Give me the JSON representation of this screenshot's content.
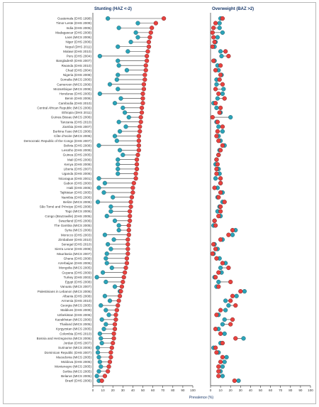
{
  "colors": {
    "stunting_dot": "#e8423f",
    "baseline_dot": "#2aa3b8",
    "stem": "#333333"
  },
  "chart_data": [
    {
      "type": "dumbbell",
      "title": "Stunting (HAZ <-2)",
      "xlabel": "Prevalence (%)",
      "xlim": [
        0,
        100
      ],
      "xticks": [
        0,
        10,
        20,
        30,
        40,
        50,
        60,
        70,
        80,
        90,
        100
      ],
      "categories": [
        "Guatemala (DHS 1998)",
        "Timor-Leste (DHS 2009)",
        "India (DHS 2005)",
        "Madagascar (DHS 2008)",
        "Laos (MICS 2006)",
        "Niger (DHS 2006)",
        "Nepal (DHS 2011)",
        "Malawi (DHS 2010)",
        "Peru (DHS 2004)",
        "Bangladesh (DHS 2007)",
        "Rwanda (DHS 2010)",
        "Chad (DHS 2004)",
        "Nigeria (DHS 2008)",
        "Somalia (MICS 2006)",
        "Cameroon (MICS 2006)",
        "Mozambique (MICS 2008)",
        "Honduras (DHS 2005)",
        "Benin (DHS 2006)",
        "Cambodia (DHS 2010)",
        "Central African Republic (MICS 2006)",
        "Ethiopia (DHS 2011)",
        "Guinea Bissau (MICS 2006)",
        "Tanzania (DHS 2010)",
        "Zambia (DHS 2007)",
        "Burkina Faso (MICS 2006)",
        "Côte d'Ivoire (MICS 2006)",
        "Democratic Republic of the Congo (DHS 2007)",
        "Bolivia (DHS 2008)",
        "Lesotho (DHS 2009)",
        "Guinea (DHS 2005)",
        "Mali (DHS 2006)",
        "Kenya (DHS 2008)",
        "Liberia (DHS 2007)",
        "Uganda (DHS 2006)",
        "Nicaragua (DHS 2001)",
        "Gabon (DHS 2000)",
        "Haiti (DHS 2005)",
        "Tajikistan (DHS 2005)",
        "Namibia (DHS 2006)",
        "Belize (MICS 2006)",
        "São Tomé and Príncipe (DHS 2008)",
        "Togo (MICS 2006)",
        "Congo (Brazzaville) (DHS 2005)",
        "Swaziland (DHS 2006)",
        "The Gambia (MICS 2005)",
        "Syria (MICS 2006)",
        "Morocco (DHS 2003)",
        "Zimbabwe (DHS 2010)",
        "Senegal (DHS 2010)",
        "Sierra Leone (DHS 2008)",
        "Mauritania (MICS 2007)",
        "Ghana (DHS 2008)",
        "Azerbaijan (DHS 2006)",
        "Mongolia (MICS 2005)",
        "Guyana (DHS 2009)",
        "Turkey (DHS 2003)",
        "Egypt (DHS 2008)",
        "Vanuatu (MICS 2007)",
        "Palestinians in Lebanon (MICS 2006)",
        "Albania (DHS 2008)",
        "Armenia (DHS 2010)",
        "Georgia (MICS 2005)",
        "Maldives (DHS 2009)",
        "Uzbekistan (DHS 2006)",
        "Kazakhstan (MICS 2006)",
        "Thailand (MICS 2005)",
        "Kyrgyzstan (MICS 2005)",
        "Colombia (DHS 2010)",
        "Bosnia and Herzegovina (MICS 2006)",
        "Jordan (DHS 2007)",
        "Suriname (MICS 2006)",
        "Dominican Republic (DHS 2007)",
        "Macedonia (MICS 2005)",
        "Moldova (DHS 2005)",
        "Montenegro (MICS 2005)",
        "Serbia (MICS 2005)",
        "Belarus (MICS 2005)",
        "Brazil (DHS 2006)"
      ],
      "series": [
        {
          "values": [
            71,
            63,
            59,
            58,
            57,
            56,
            56,
            55,
            54,
            54,
            53,
            53,
            52,
            52,
            51,
            51,
            50,
            50,
            50,
            49,
            49,
            48,
            48,
            47,
            47,
            46,
            46,
            46,
            46,
            45,
            44,
            44,
            44,
            43,
            43,
            41,
            40,
            40,
            39,
            38,
            38,
            37,
            37,
            37,
            36,
            36,
            36,
            35,
            35,
            35,
            35,
            34,
            34,
            33,
            32,
            31,
            30,
            29,
            28,
            27,
            26,
            25,
            24,
            23,
            23,
            22,
            22,
            21,
            21,
            20,
            19,
            18,
            18,
            17,
            16,
            15,
            12,
            9
          ]
        },
        {
          "values": [
            15,
            45,
            26,
            43,
            45,
            38,
            25,
            35,
            7,
            25,
            26,
            34,
            25,
            24,
            17,
            25,
            7,
            28,
            22,
            30,
            32,
            36,
            26,
            33,
            27,
            22,
            24,
            6,
            27,
            30,
            25,
            25,
            25,
            25,
            6,
            12,
            6,
            11,
            20,
            5,
            18,
            18,
            14,
            22,
            26,
            26,
            12,
            21,
            15,
            18,
            14,
            13,
            14,
            19,
            10,
            4,
            13,
            22,
            27,
            12,
            17,
            8,
            13,
            16,
            9,
            13,
            11,
            7,
            8,
            9,
            5,
            5,
            6,
            7,
            8,
            6,
            4,
            6
          ]
        }
      ]
    },
    {
      "type": "dumbbell",
      "title": "Overweight (BAZ >2)",
      "xlabel": "Prevalence (%)",
      "xlim": [
        0,
        100
      ],
      "xticks": [
        0,
        10,
        20,
        30,
        40,
        50,
        60,
        70,
        80,
        90,
        100
      ],
      "series": [
        {
          "values": [
            12,
            5,
            3,
            2,
            3,
            4,
            2,
            15,
            18,
            3,
            10,
            5,
            10,
            9,
            12,
            5,
            8,
            14,
            5,
            10,
            9,
            2,
            7,
            12,
            7,
            6,
            8,
            12,
            10,
            8,
            6,
            7,
            6,
            6,
            10,
            10,
            4,
            10,
            8,
            14,
            10,
            10,
            8,
            4,
            5,
            22,
            18,
            10,
            3,
            5,
            2,
            6,
            12,
            18,
            8,
            5,
            20,
            8,
            30,
            22,
            20,
            25,
            10,
            6,
            22,
            20,
            5,
            10,
            25,
            12,
            5,
            6,
            12,
            10,
            8,
            8,
            8,
            24
          ]
        },
        {
          "values": [
            10,
            9,
            9,
            12,
            7,
            5,
            4,
            10,
            11,
            4,
            7,
            8,
            11,
            6,
            6,
            13,
            12,
            7,
            3,
            6,
            10,
            20,
            6,
            8,
            12,
            8,
            10,
            14,
            9,
            8,
            6,
            5,
            8,
            9,
            5,
            10,
            7,
            12,
            7,
            12,
            9,
            7,
            10,
            4,
            3,
            25,
            22,
            12,
            4,
            7,
            3,
            9,
            15,
            10,
            11,
            4,
            8,
            6,
            34,
            26,
            15,
            18,
            15,
            8,
            14,
            12,
            8,
            14,
            33,
            10,
            3,
            8,
            16,
            14,
            12,
            10,
            12,
            28
          ]
        }
      ]
    }
  ]
}
